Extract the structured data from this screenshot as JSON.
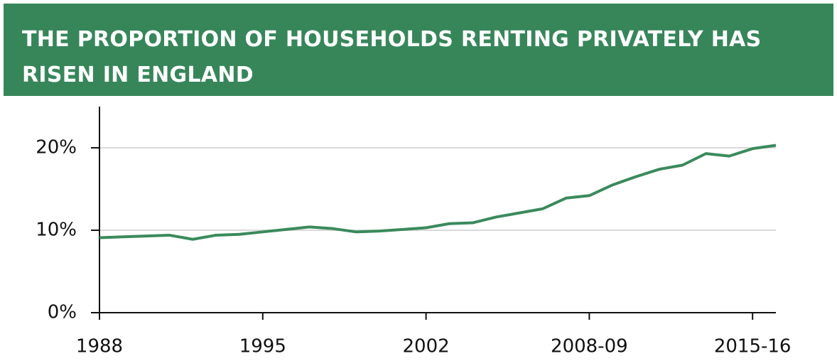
{
  "chart_data": {
    "type": "line",
    "title": "THE PROPORTION OF HOUSEHOLDS RENTING PRIVATELY HAS RISEN IN ENGLAND",
    "categories": [
      "1988",
      null,
      null,
      null,
      null,
      null,
      null,
      "1995",
      null,
      null,
      null,
      null,
      null,
      null,
      "2002",
      null,
      null,
      null,
      null,
      null,
      null,
      "2008-09",
      null,
      null,
      null,
      null,
      null,
      null,
      "2015-16",
      null
    ],
    "series": [
      {
        "name": null,
        "color": "#3a8a5c",
        "values": [
          9.1,
          9.2,
          9.3,
          9.4,
          8.9,
          9.4,
          9.5,
          9.8,
          10.1,
          10.4,
          10.2,
          9.8,
          9.9,
          10.1,
          10.3,
          10.8,
          10.9,
          11.6,
          12.1,
          12.6,
          13.9,
          14.2,
          15.5,
          16.5,
          17.4,
          17.9,
          19.3,
          19.0,
          19.9,
          20.3
        ]
      }
    ],
    "ylim": [
      0,
      25
    ],
    "yticks": [
      {
        "value": 0,
        "label": "0%"
      },
      {
        "value": 10,
        "label": "10%"
      },
      {
        "value": 20,
        "label": "20%"
      }
    ],
    "grid": true,
    "header_color": "#37865a"
  }
}
